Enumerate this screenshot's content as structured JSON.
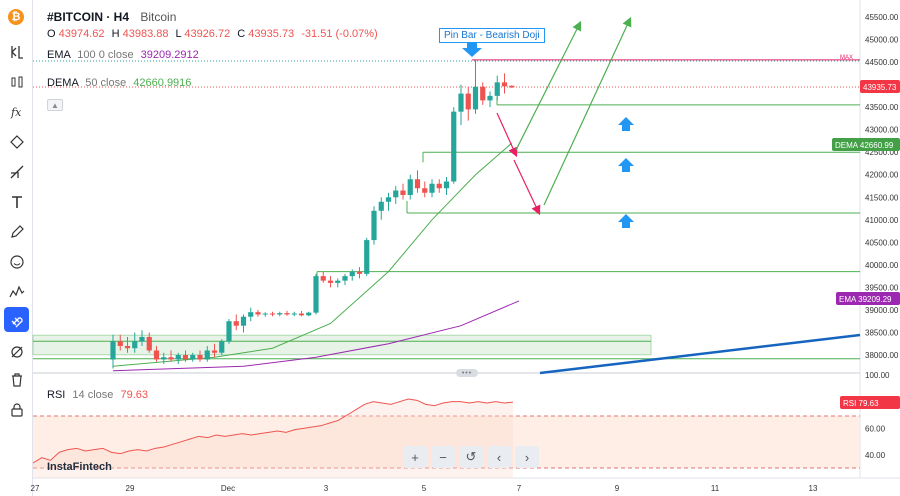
{
  "header": {
    "symbol": "#BITCOIN · H4",
    "name": "Bitcoin",
    "ohlc": {
      "o_label": "O",
      "o_value": "43974.62",
      "h_label": "H",
      "h_value": "43983.88",
      "l_label": "L",
      "l_value": "43926.72",
      "c_label": "C",
      "c_value": "43935.73",
      "change": "-31.51 (-0.07%)"
    },
    "ema": {
      "label": "EMA",
      "params": "100 0 close",
      "value": "39209.2912",
      "color": "#9c27b0"
    },
    "dema": {
      "label": "DEMA",
      "params": "50 close",
      "value": "42660.9916",
      "color": "#4caf50"
    }
  },
  "annotation": {
    "text": "Pin Bar - Bearish Doji"
  },
  "max_label": "MAX",
  "price_axis": {
    "ticks": [
      "45500.00",
      "45000.00",
      "44500.00",
      "44000.00",
      "43500.00",
      "43000.00",
      "42500.00",
      "42000.00",
      "41500.00",
      "41000.00",
      "40500.00",
      "40000.00",
      "39500.00",
      "39000.00",
      "38500.00",
      "38000.00"
    ],
    "current_price": "43935.73",
    "dema_tag": {
      "label": "DEMA",
      "value": "42660.99"
    },
    "ema_tag": {
      "label": "EMA",
      "value": "39209.29"
    }
  },
  "rsi": {
    "label": "RSI",
    "params": "14 close",
    "value": "79.63",
    "axis_ticks": [
      "100.00",
      "60.00",
      "40.00"
    ],
    "tag_label": "RSI",
    "tag_value": "79.63"
  },
  "time_axis": {
    "labels": [
      "27",
      "29",
      "Dec",
      "3",
      "5",
      "7",
      "9",
      "11",
      "13"
    ]
  },
  "watermark": "InstaFintech",
  "toolbar_icons": [
    "bitcoin-icon",
    "indicator-icon",
    "compare-icon",
    "fx-icon",
    "line-tool-icon",
    "trend-tool-icon",
    "text-tool-icon",
    "brush-icon",
    "emoji-icon",
    "pattern-icon",
    "magnet-icon",
    "eye-off-icon",
    "delete-icon",
    "lock-icon"
  ],
  "zoom_controls": [
    "+",
    "−",
    "↺",
    "‹",
    "›"
  ],
  "colors": {
    "up": "#26a69a",
    "down": "#ef5350",
    "support": "#4caf50",
    "resistance": "#e91e63",
    "blue_arrow": "#2196f3",
    "trendline": "#1565c0",
    "rsi_line": "#ef5350"
  },
  "chart_data": {
    "type": "candlestick",
    "timeframe": "H4",
    "ylim": [
      37800,
      45700
    ],
    "candles": [
      {
        "o": 37900,
        "h": 38450,
        "l": 37700,
        "c": 38300
      },
      {
        "o": 38300,
        "h": 38450,
        "l": 38100,
        "c": 38200
      },
      {
        "o": 38200,
        "h": 38400,
        "l": 38050,
        "c": 38150
      },
      {
        "o": 38150,
        "h": 38500,
        "l": 38050,
        "c": 38300
      },
      {
        "o": 38300,
        "h": 38550,
        "l": 38200,
        "c": 38400
      },
      {
        "o": 38400,
        "h": 38500,
        "l": 38050,
        "c": 38100
      },
      {
        "o": 38100,
        "h": 38200,
        "l": 37850,
        "c": 37900
      },
      {
        "o": 37900,
        "h": 38050,
        "l": 37800,
        "c": 37950
      },
      {
        "o": 37950,
        "h": 38100,
        "l": 37850,
        "c": 37900
      },
      {
        "o": 37900,
        "h": 38050,
        "l": 37800,
        "c": 38000
      },
      {
        "o": 38000,
        "h": 38100,
        "l": 37850,
        "c": 37900
      },
      {
        "o": 37900,
        "h": 38050,
        "l": 37850,
        "c": 38000
      },
      {
        "o": 38000,
        "h": 38100,
        "l": 37850,
        "c": 37900
      },
      {
        "o": 37900,
        "h": 38200,
        "l": 37850,
        "c": 38100
      },
      {
        "o": 38100,
        "h": 38250,
        "l": 37950,
        "c": 38050
      },
      {
        "o": 38050,
        "h": 38350,
        "l": 38000,
        "c": 38300
      },
      {
        "o": 38300,
        "h": 38800,
        "l": 38250,
        "c": 38750
      },
      {
        "o": 38750,
        "h": 38900,
        "l": 38550,
        "c": 38650
      },
      {
        "o": 38650,
        "h": 38900,
        "l": 38500,
        "c": 38850
      },
      {
        "o": 38850,
        "h": 39050,
        "l": 38750,
        "c": 38950
      },
      {
        "o": 38950,
        "h": 39000,
        "l": 38850,
        "c": 38900
      },
      {
        "o": 38900,
        "h": 38950,
        "l": 38850,
        "c": 38920
      },
      {
        "o": 38920,
        "h": 38960,
        "l": 38860,
        "c": 38900
      },
      {
        "o": 38900,
        "h": 38960,
        "l": 38860,
        "c": 38930
      },
      {
        "o": 38930,
        "h": 38980,
        "l": 38870,
        "c": 38900
      },
      {
        "o": 38900,
        "h": 38960,
        "l": 38860,
        "c": 38920
      },
      {
        "o": 38920,
        "h": 38980,
        "l": 38860,
        "c": 38880
      },
      {
        "o": 38880,
        "h": 38960,
        "l": 38860,
        "c": 38940
      },
      {
        "o": 38940,
        "h": 39800,
        "l": 38900,
        "c": 39750
      },
      {
        "o": 39750,
        "h": 39850,
        "l": 39600,
        "c": 39650
      },
      {
        "o": 39650,
        "h": 39750,
        "l": 39500,
        "c": 39600
      },
      {
        "o": 39600,
        "h": 39700,
        "l": 39500,
        "c": 39650
      },
      {
        "o": 39650,
        "h": 39800,
        "l": 39550,
        "c": 39750
      },
      {
        "o": 39750,
        "h": 39900,
        "l": 39650,
        "c": 39850
      },
      {
        "o": 39850,
        "h": 39950,
        "l": 39700,
        "c": 39800
      },
      {
        "o": 39800,
        "h": 40600,
        "l": 39750,
        "c": 40550
      },
      {
        "o": 40550,
        "h": 41300,
        "l": 40450,
        "c": 41200
      },
      {
        "o": 41200,
        "h": 41500,
        "l": 41000,
        "c": 41400
      },
      {
        "o": 41400,
        "h": 41600,
        "l": 41200,
        "c": 41500
      },
      {
        "o": 41500,
        "h": 41750,
        "l": 41350,
        "c": 41650
      },
      {
        "o": 41650,
        "h": 41800,
        "l": 41450,
        "c": 41550
      },
      {
        "o": 41550,
        "h": 42000,
        "l": 41450,
        "c": 41900
      },
      {
        "o": 41900,
        "h": 42100,
        "l": 41600,
        "c": 41700
      },
      {
        "o": 41700,
        "h": 41850,
        "l": 41500,
        "c": 41600
      },
      {
        "o": 41600,
        "h": 41900,
        "l": 41500,
        "c": 41800
      },
      {
        "o": 41800,
        "h": 41900,
        "l": 41600,
        "c": 41700
      },
      {
        "o": 41700,
        "h": 41950,
        "l": 41550,
        "c": 41850
      },
      {
        "o": 41850,
        "h": 43500,
        "l": 41800,
        "c": 43400
      },
      {
        "o": 43400,
        "h": 44000,
        "l": 43100,
        "c": 43800
      },
      {
        "o": 43800,
        "h": 43950,
        "l": 43200,
        "c": 43450
      },
      {
        "o": 43450,
        "h": 44550,
        "l": 43350,
        "c": 43950
      },
      {
        "o": 43950,
        "h": 44050,
        "l": 43550,
        "c": 43650
      },
      {
        "o": 43650,
        "h": 43850,
        "l": 43500,
        "c": 43750
      },
      {
        "o": 43750,
        "h": 44200,
        "l": 43650,
        "c": 44050
      },
      {
        "o": 44050,
        "h": 44250,
        "l": 43800,
        "c": 43960
      },
      {
        "o": 43975,
        "h": 43984,
        "l": 43927,
        "c": 43936
      }
    ],
    "ema100": [
      [
        0,
        37650
      ],
      [
        18,
        37750
      ],
      [
        28,
        37950
      ],
      [
        38,
        38250
      ],
      [
        48,
        38650
      ],
      [
        56,
        39200
      ]
    ],
    "dema50": [
      [
        0,
        37750
      ],
      [
        14,
        37950
      ],
      [
        22,
        38150
      ],
      [
        30,
        38700
      ],
      [
        38,
        39850
      ],
      [
        44,
        41000
      ],
      [
        50,
        42000
      ],
      [
        55,
        42700
      ]
    ],
    "levels": [
      {
        "name": "max",
        "value": 44550
      },
      {
        "name": "resistance-1",
        "value": 43550
      },
      {
        "name": "resistance-2",
        "value": 42500
      },
      {
        "name": "support-1",
        "value": 41150
      },
      {
        "name": "support-2",
        "value": 39850
      },
      {
        "name": "support-zone-top",
        "value": 38350
      },
      {
        "name": "support-zone-bottom",
        "value": 38050
      }
    ],
    "rsi": [
      34,
      38,
      36,
      42,
      44,
      45,
      43,
      44,
      45,
      42,
      41,
      43,
      44,
      43,
      45,
      46,
      48,
      50,
      52,
      54,
      53,
      55,
      54,
      55,
      56,
      55,
      56,
      57,
      58,
      57,
      59,
      60,
      61,
      62,
      64,
      66,
      70,
      74,
      78,
      80,
      79,
      78,
      80,
      82,
      81,
      78,
      77,
      79,
      80,
      80,
      79,
      80,
      79,
      80,
      79,
      79.63
    ],
    "rsi_levels": [
      70,
      30
    ],
    "rsi_ylim": [
      25,
      100
    ]
  }
}
